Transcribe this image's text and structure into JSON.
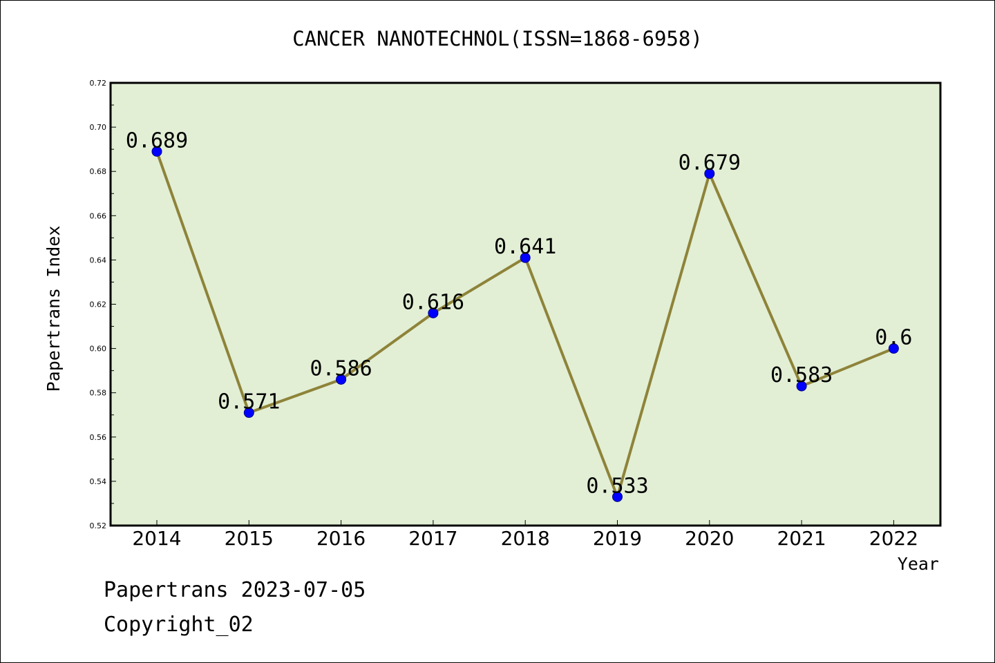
{
  "chart_data": {
    "type": "line",
    "title": "CANCER NANOTECHNOL(ISSN=1868-6958)",
    "xlabel": "Year",
    "ylabel": "Papertrans Index",
    "categories": [
      "2014",
      "2015",
      "2016",
      "2017",
      "2018",
      "2019",
      "2020",
      "2021",
      "2022"
    ],
    "values": [
      0.689,
      0.571,
      0.586,
      0.616,
      0.641,
      0.533,
      0.679,
      0.583,
      0.6
    ],
    "data_labels": [
      "0.689",
      "0.571",
      "0.586",
      "0.616",
      "0.641",
      "0.533",
      "0.679",
      "0.583",
      "0.6"
    ],
    "ylim": [
      0.52,
      0.72
    ],
    "yticks": [
      "0.52",
      "0.54",
      "0.56",
      "0.58",
      "0.60",
      "0.62",
      "0.64",
      "0.66",
      "0.68",
      "0.70",
      "0.72"
    ],
    "grid": false,
    "colors": {
      "plot_background": "#e2efd5",
      "line": "#8e8339",
      "marker_fill": "#0000ff",
      "marker_edge": "#000080"
    }
  },
  "footer": {
    "line1": "Papertrans 2023-07-05",
    "line2": "Copyright_02"
  }
}
